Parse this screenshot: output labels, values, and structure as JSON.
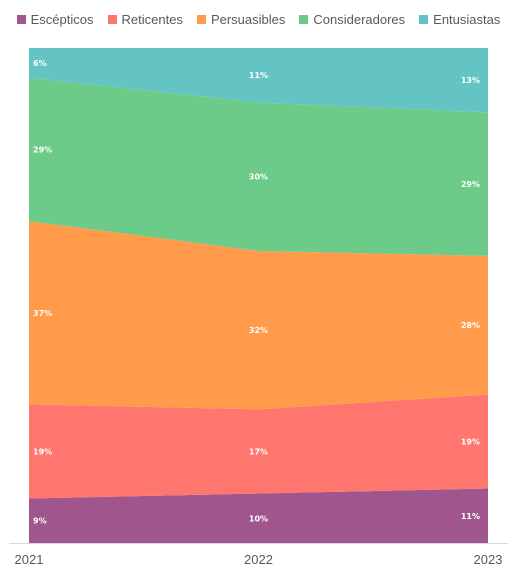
{
  "chart_data": {
    "type": "area",
    "stacked": true,
    "normalized": true,
    "title": "",
    "xlabel": "",
    "ylabel": "",
    "x": [
      "2021",
      "2022",
      "2023"
    ],
    "legend_position": "top",
    "grid": false,
    "ylim": [
      0,
      100
    ],
    "series": [
      {
        "name": "Escépticos",
        "values": [
          9,
          10,
          11
        ],
        "labels": [
          "9%",
          "10%",
          "11%"
        ],
        "color": "#A0558D"
      },
      {
        "name": "Reticentes",
        "values": [
          19,
          17,
          19
        ],
        "labels": [
          "19%",
          "17%",
          "19%"
        ],
        "color": "#FF766F"
      },
      {
        "name": "Persuasibles",
        "values": [
          37,
          32,
          28
        ],
        "labels": [
          "37%",
          "32%",
          "28%"
        ],
        "color": "#FF9B4A"
      },
      {
        "name": "Consideradores",
        "values": [
          29,
          30,
          29
        ],
        "labels": [
          "29%",
          "30%",
          "29%"
        ],
        "color": "#6CCB88"
      },
      {
        "name": "Entusiastas",
        "values": [
          6,
          11,
          13
        ],
        "labels": [
          "6%",
          "11%",
          "13%"
        ],
        "color": "#64C3C3"
      }
    ]
  }
}
